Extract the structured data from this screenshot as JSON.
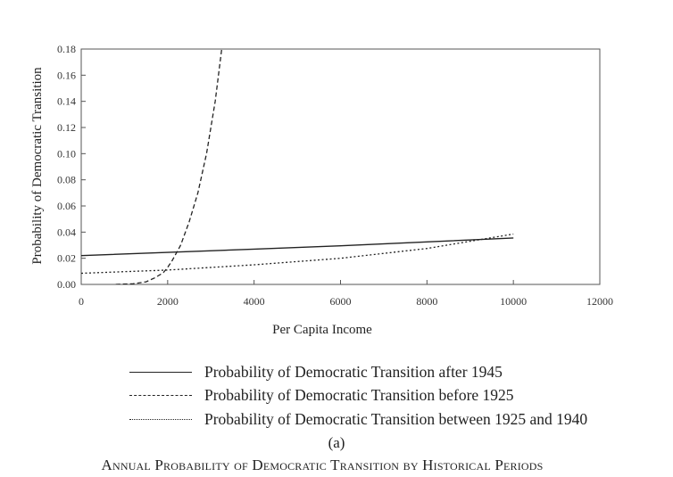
{
  "chart_data": {
    "type": "line",
    "xlabel": "Per Capita Income",
    "ylabel": "Probability of Democratic Transition",
    "xlim": [
      0,
      12000
    ],
    "ylim": [
      0,
      0.18
    ],
    "x_ticks": [
      "0",
      "2000",
      "4000",
      "6000",
      "8000",
      "10000",
      "12000"
    ],
    "y_ticks": [
      "0.00",
      "0.02",
      "0.04",
      "0.06",
      "0.08",
      "0.10",
      "0.12",
      "0.14",
      "0.16",
      "0.18"
    ],
    "grid": false,
    "legend_position": "bottom",
    "series": [
      {
        "name": "Probability of Democratic Transition after 1945",
        "style": "solid",
        "x": [
          0,
          2000,
          4000,
          6000,
          8000,
          10000
        ],
        "y": [
          0.022,
          0.0245,
          0.027,
          0.0295,
          0.0325,
          0.0355
        ]
      },
      {
        "name": "Probability of Democratic Transition before 1925",
        "style": "dashed",
        "x": [
          800,
          1200,
          1500,
          1700,
          1900,
          2000,
          2100,
          2300,
          2500,
          2700,
          2900,
          3100,
          3250
        ],
        "y": [
          0.0,
          0.0005,
          0.002,
          0.005,
          0.009,
          0.013,
          0.018,
          0.03,
          0.048,
          0.07,
          0.1,
          0.14,
          0.18
        ]
      },
      {
        "name": "Probability of Democratic Transition between 1925 and 1940",
        "style": "dotted",
        "x": [
          0,
          2000,
          4000,
          6000,
          8000,
          10000
        ],
        "y": [
          0.0085,
          0.011,
          0.015,
          0.02,
          0.0275,
          0.0385
        ]
      }
    ]
  },
  "caption_sub": "(a)",
  "caption": "Annual Probability of Democratic Transition by Historical Periods"
}
